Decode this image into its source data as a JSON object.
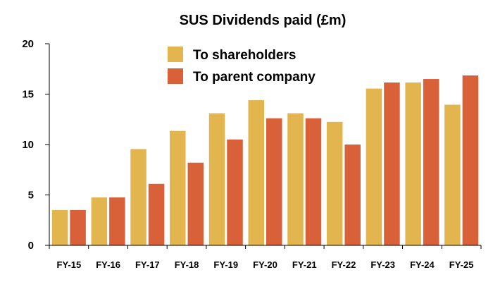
{
  "chart_data": {
    "type": "bar",
    "title": "SUS Dividends paid (£m)",
    "xlabel": "",
    "ylabel": "",
    "ylim": [
      0,
      20
    ],
    "yticks": [
      0,
      5,
      10,
      15,
      20
    ],
    "grid": false,
    "legend_position": "top-center",
    "categories": [
      "FY-15",
      "FY-16",
      "FY-17",
      "FY-18",
      "FY-19",
      "FY-20",
      "FY-21",
      "FY-22",
      "FY-23",
      "FY-24",
      "FY-25"
    ],
    "series": [
      {
        "name": "To shareholders",
        "color": "#E3B54F",
        "values": [
          3.5,
          4.75,
          9.55,
          11.35,
          13.1,
          14.4,
          13.1,
          12.25,
          15.55,
          16.15,
          13.95
        ]
      },
      {
        "name": "To parent company",
        "color": "#D9613A",
        "values": [
          3.5,
          4.75,
          6.1,
          8.2,
          10.5,
          12.6,
          12.6,
          10.0,
          16.15,
          16.5,
          16.85
        ]
      }
    ]
  }
}
